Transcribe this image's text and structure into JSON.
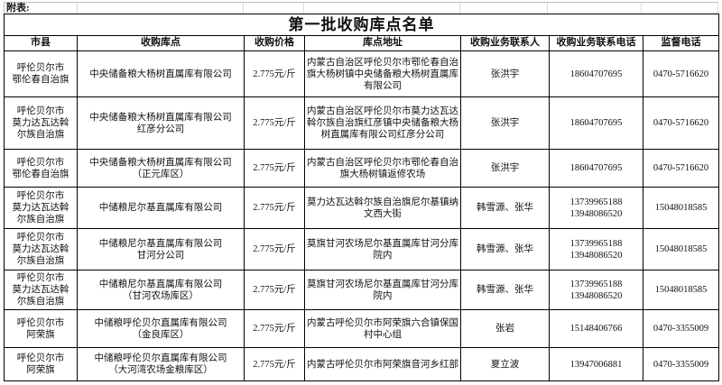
{
  "page": {
    "appendix_label": "附表:",
    "title": "第一批收购库点名单"
  },
  "table": {
    "columns": [
      "市县",
      "收购库点",
      "收购价格",
      "库点地址",
      "收购业务联系人",
      "收购业务联系电话",
      "监督电话"
    ],
    "rows": [
      {
        "county": "呼伦贝尔市\n鄂伦春自治旗",
        "depot": "中央储备粮大杨树直属库有限公司",
        "price": "2.775元/斤",
        "address": "内蒙古自治区呼伦贝尔市鄂伦春自治旗大杨树镇中央储备粮大杨树直属库有限公司",
        "contact": "张洪宇",
        "phone": "18604707695",
        "supervision": "0470-5716620"
      },
      {
        "county": "呼伦贝尔市\n莫力达瓦达斡\n尔族自治旗",
        "depot": "中央储备粮大杨树直属库有限公司\n红彦分公司",
        "price": "2.775元/斤",
        "address": "内蒙古自治区呼伦贝尔市莫力达瓦达斡尔族自治旗红彦镇中央储备粮大杨树直属库有限公司红彦分公司",
        "contact": "张洪宇",
        "phone": "18604707695",
        "supervision": "0470-5716620"
      },
      {
        "county": "呼伦贝尔市\n鄂伦春自治旗",
        "depot": "中央储备粮大杨树直属库有限公司\n（正元库区）",
        "price": "2.775元/斤",
        "address": "内蒙古自治区呼伦贝尔市鄂伦春自治旗大杨树镇返修农场",
        "contact": "张洪宇",
        "phone": "18604707695",
        "supervision": "0470-5716620"
      },
      {
        "county": "呼伦贝尔市\n莫力达瓦达斡\n尔族自治旗",
        "depot": "中储粮尼尔基直属库有限公司",
        "price": "2.775元/斤",
        "address": "莫力达瓦达斡尔族自治旗尼尔基镇纳文西大街",
        "contact": "韩雪源、张华",
        "phone": "13739965188\n13948086520",
        "supervision": "15048018585"
      },
      {
        "county": "呼伦贝尔市\n莫力达瓦达斡\n尔族自治旗",
        "depot": "中储粮尼尔基直属库有限公司\n甘河分公司",
        "price": "2.775元/斤",
        "address": "莫旗甘河农场尼尔基直属库甘河分库院内",
        "contact": "韩雪源、张华",
        "phone": "13739965188\n13948086520",
        "supervision": "15048018585"
      },
      {
        "county": "呼伦贝尔市\n莫力达瓦达斡\n尔族自治旗",
        "depot": "中储粮尼尔基直属库有限公司\n（甘河农场库区）",
        "price": "2.775元/斤",
        "address": "莫旗甘河农场尼尔基直属库甘河分库院内",
        "contact": "韩雪源、张华",
        "phone": "13739965188\n13948086520",
        "supervision": "15048018585"
      },
      {
        "county": "呼伦贝尔市\n阿荣旗",
        "depot": "中储粮呼伦贝尔直属库有限公司\n（金良库区）",
        "price": "2.775元/斤",
        "address": "内蒙古呼伦贝尔市阿荣旗六合镇保国村中心组",
        "contact": "张岩",
        "phone": "15148406766",
        "supervision": "0470-3355009"
      },
      {
        "county": "呼伦贝尔市\n阿荣旗",
        "depot": "中储粮呼伦贝尔直属库有限公司\n（大河湾农场金粮库区）",
        "price": "2.775元/斤",
        "address": "内蒙古呼伦贝尔市阿荣旗音河乡红部",
        "contact": "夏立波",
        "phone": "13947006881",
        "supervision": "0470-3355009"
      }
    ]
  }
}
